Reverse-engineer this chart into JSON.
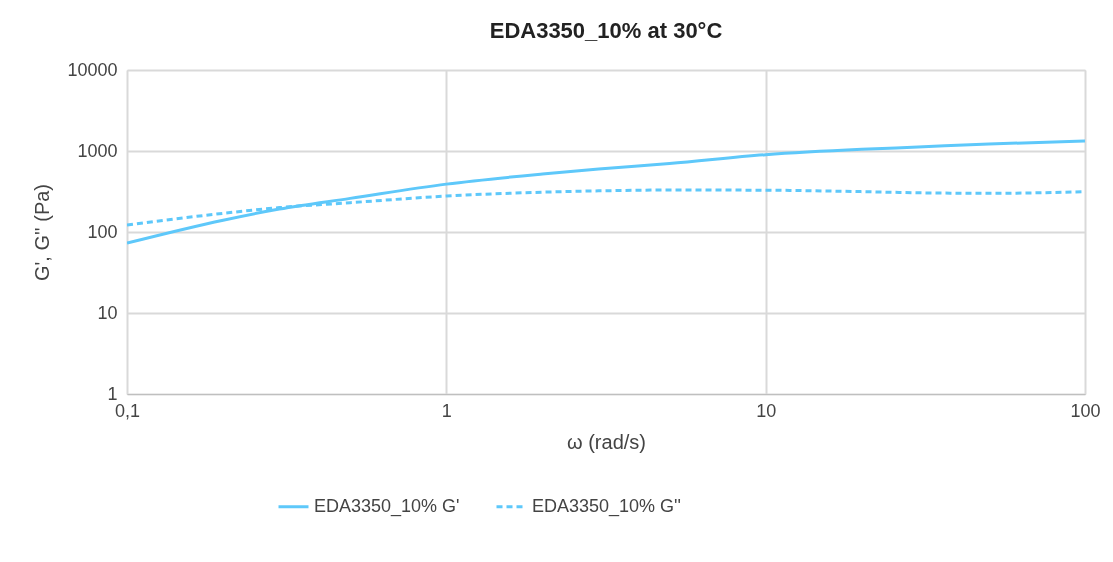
{
  "chart_data": {
    "type": "line",
    "title": "EDA3350_10% at 30°C",
    "xlabel": "ω (rad/s)",
    "ylabel": "G', G'' (Pa)",
    "x": [
      0.1,
      0.2,
      0.3,
      0.5,
      1,
      2,
      3,
      5,
      10,
      20,
      30,
      50,
      100
    ],
    "series": [
      {
        "name": "EDA3350_10% G'",
        "color": "#5ec8fa",
        "line_style": "solid",
        "values": [
          73,
          140,
          192,
          260,
          390,
          520,
          600,
          700,
          900,
          1050,
          1120,
          1220,
          1330
        ]
      },
      {
        "name": "EDA3350_10% G''",
        "color": "#5ec8fa",
        "line_style": "dashed",
        "values": [
          122,
          170,
          200,
          230,
          278,
          310,
          322,
          330,
          328,
          315,
          305,
          300,
          315
        ]
      }
    ],
    "log": "xy",
    "xlim": [
      0.1,
      100
    ],
    "xticks": [
      {
        "value": 0.1,
        "label": "0,1"
      },
      1,
      10,
      100
    ],
    "ylim": [
      1,
      10000
    ],
    "yticks": [
      1,
      10,
      100,
      1000,
      10000
    ],
    "grid": true,
    "legend": "bottom"
  }
}
